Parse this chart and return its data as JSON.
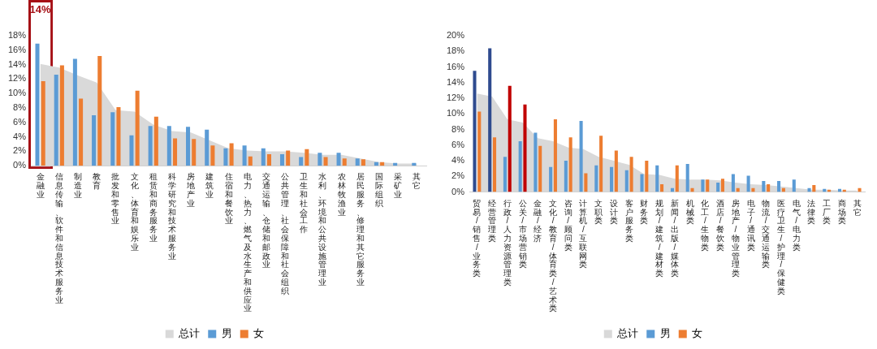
{
  "chart_data": [
    {
      "type": "bar",
      "categories": [
        "金融业",
        "信息传输、软件和信息技术服务业",
        "制造业",
        "教育",
        "批发和零售业",
        "文化、体育和娱乐业",
        "租赁和商务服务业",
        "科学研究和技术服务业",
        "房地产业",
        "建筑业",
        "住宿和餐饮业",
        "电力、热力、燃气及水生产和供应业",
        "交通运输、仓储和邮政业",
        "公共管理、社会保障和社会组织",
        "卫生和社会工作",
        "水利、环境和公共设施管理业",
        "农林牧渔业",
        "居民服务、修理和其它服务业",
        "国际组织",
        "采矿业",
        "其它"
      ],
      "series": [
        {
          "name": "总计",
          "type": "area",
          "color": "#d9d9d9",
          "values": [
            14.1,
            13.6,
            12.5,
            11.5,
            7.7,
            7.5,
            5.7,
            4.8,
            4.6,
            3.5,
            2.4,
            2.1,
            2.0,
            2.0,
            1.8,
            1.5,
            1.5,
            1.0,
            0.5,
            0.3,
            0.3
          ]
        },
        {
          "name": "男",
          "color": "#5b9bd5",
          "values": [
            16.9,
            12.6,
            14.8,
            7.0,
            7.4,
            4.2,
            5.5,
            5.5,
            5.4,
            5.0,
            2.4,
            2.8,
            2.4,
            1.6,
            1.2,
            1.8,
            1.8,
            1.0,
            0.5,
            0.4,
            0.4
          ]
        },
        {
          "name": "女",
          "color": "#ed7d31",
          "values": [
            11.7,
            13.9,
            9.3,
            15.2,
            8.1,
            10.4,
            6.8,
            3.8,
            3.7,
            2.8,
            3.1,
            1.3,
            1.6,
            2.1,
            2.3,
            1.2,
            1.0,
            0.9,
            0.5,
            0,
            0
          ]
        }
      ],
      "ylim": [
        0,
        18
      ],
      "yticks": [
        {
          "value": 0,
          "label": "0%"
        },
        {
          "value": 2,
          "label": "2%"
        },
        {
          "value": 4,
          "label": "4%"
        },
        {
          "value": 6,
          "label": "6%"
        },
        {
          "value": 8,
          "label": "8%"
        },
        {
          "value": 10,
          "label": "10%"
        },
        {
          "value": 12,
          "label": "12%"
        },
        {
          "value": 14,
          "label": "14%"
        },
        {
          "value": 16,
          "label": "16%"
        },
        {
          "value": 18,
          "label": "18%"
        }
      ],
      "legend": "bottom",
      "annotations": [
        "14%"
      ]
    },
    {
      "type": "bar",
      "categories": [
        "贸易/销售/业务类",
        "经营管理类",
        "行政/人力资源管理类",
        "公关/市场营销类",
        "金融/经济",
        "文化/教育/体育类/艺术类",
        "咨询/顾问类",
        "计算机/互联网类",
        "文职类",
        "设计类",
        "客户服务类",
        "财务类",
        "规划/建筑/建材类",
        "新闻/出版/媒体类",
        "机械类",
        "化工/生物类",
        "酒店/餐饮类",
        "房地产/物业管理类",
        "电子/通讯类",
        "物流/交通运输类",
        "医疗卫生/护理/保健类",
        "电气/电力类",
        "法律类",
        "工厂类",
        "商场类",
        "其它"
      ],
      "series": [
        {
          "name": "总计",
          "type": "area",
          "color": "#d9d9d9",
          "values": [
            12.6,
            12.2,
            9.3,
            8.9,
            6.9,
            6.5,
            5.7,
            5.5,
            4.5,
            4.0,
            3.5,
            2.3,
            2.2,
            1.7,
            1.6,
            1.6,
            1.5,
            1.2,
            1.0,
            0.9,
            0.7,
            0.5,
            0.3,
            0.3,
            0.2,
            0.2
          ]
        },
        {
          "name": "男",
          "color": "#5b9bd5",
          "colors": [
            "#2f4b8f",
            "#2f4b8f",
            "#5b9bd5",
            "#5b9bd5",
            "#5b9bd5",
            "#5b9bd5",
            "#5b9bd5",
            "#5b9bd5",
            "#5b9bd5",
            "#5b9bd5",
            "#5b9bd5",
            "#5b9bd5",
            "#5b9bd5",
            "#5b9bd5",
            "#5b9bd5",
            "#5b9bd5",
            "#5b9bd5",
            "#5b9bd5",
            "#5b9bd5",
            "#5b9bd5",
            "#5b9bd5",
            "#5b9bd5",
            "#5b9bd5",
            "#5b9bd5",
            "#5b9bd5",
            "#5b9bd5"
          ],
          "values": [
            15.5,
            18.4,
            4.5,
            6.5,
            7.6,
            3.2,
            4.0,
            9.1,
            3.4,
            3.2,
            2.8,
            2.3,
            3.4,
            0.5,
            3.6,
            1.6,
            1.2,
            2.3,
            2.1,
            1.4,
            1.4,
            1.6,
            0.5,
            0.4,
            0.4,
            0
          ]
        },
        {
          "name": "女",
          "color": "#ed7d31",
          "colors": [
            "#ed7d31",
            "#ed7d31",
            "#c00000",
            "#c00000",
            "#ed7d31",
            "#ed7d31",
            "#ed7d31",
            "#ed7d31",
            "#ed7d31",
            "#ed7d31",
            "#ed7d31",
            "#ed7d31",
            "#ed7d31",
            "#ed7d31",
            "#ed7d31",
            "#ed7d31",
            "#ed7d31",
            "#ed7d31",
            "#ed7d31",
            "#ed7d31",
            "#ed7d31",
            "#ed7d31",
            "#ed7d31",
            "#ed7d31",
            "#ed7d31",
            "#ed7d31"
          ],
          "values": [
            10.3,
            7.0,
            13.6,
            11.2,
            5.9,
            9.3,
            7.0,
            2.4,
            7.2,
            5.3,
            4.5,
            4.0,
            1.0,
            3.4,
            0.5,
            1.6,
            1.7,
            0.5,
            0.5,
            1.0,
            0.5,
            0,
            0.9,
            0.3,
            0.3,
            0.5
          ]
        }
      ],
      "ylim": [
        0,
        20
      ],
      "yticks": [
        {
          "value": 0,
          "label": "0%"
        },
        {
          "value": 2,
          "label": "2%"
        },
        {
          "value": 4,
          "label": "4%"
        },
        {
          "value": 6,
          "label": "6%"
        },
        {
          "value": 8,
          "label": "8%"
        },
        {
          "value": 10,
          "label": "10%"
        },
        {
          "value": 12,
          "label": "12%"
        },
        {
          "value": 14,
          "label": "14%"
        },
        {
          "value": 16,
          "label": "16%"
        },
        {
          "value": 18,
          "label": "18%"
        },
        {
          "value": 20,
          "label": "20%"
        }
      ],
      "legend": "bottom"
    }
  ]
}
